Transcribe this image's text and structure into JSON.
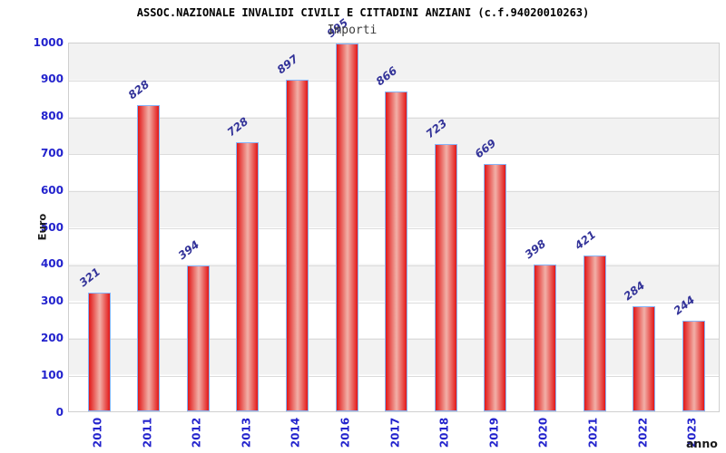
{
  "chart_data": {
    "type": "bar",
    "title": "ASSOC.NAZIONALE INVALIDI CIVILI E CITTADINI ANZIANI (c.f.94020010263)",
    "subtitle": "Importi",
    "xlabel": "anno",
    "ylabel": "Euro",
    "categories": [
      "2010",
      "2011",
      "2012",
      "2013",
      "2014",
      "2016",
      "2017",
      "2018",
      "2019",
      "2020",
      "2021",
      "2022",
      "2023"
    ],
    "values": [
      321,
      828,
      394,
      728,
      897,
      995,
      866,
      723,
      669,
      398,
      421,
      284,
      244
    ],
    "value_labels": [
      "321",
      "828",
      "394",
      "728",
      "897",
      "995",
      "866",
      "723",
      "669",
      "398",
      "421",
      "284",
      "244"
    ],
    "ylim": [
      0,
      1000
    ],
    "yticks": [
      0,
      100,
      200,
      300,
      400,
      500,
      600,
      700,
      800,
      900,
      1000
    ],
    "grid": "horizontal gridlines with alternating gray/white bands",
    "legend": "none",
    "colors": {
      "bar_fill_edge": "#e21717",
      "bar_fill_center": "#f2b0a8",
      "bar_border": "#85b4fa",
      "axis_tick_label": "#2323cd",
      "value_label": "#333399",
      "band_gray": "#f2f2f2",
      "gridline": "#dcdcdc",
      "title_text": "#000000",
      "subtitle_text": "#3c3c3c",
      "axis_title_text": "#1a1a1a"
    }
  }
}
